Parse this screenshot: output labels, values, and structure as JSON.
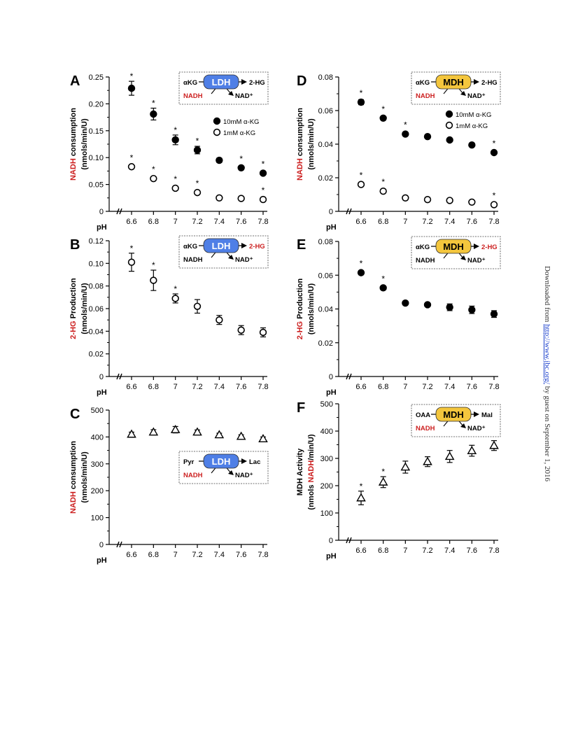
{
  "sidebar": {
    "prefix": "Downloaded from ",
    "link": "http://www.jbc.org/",
    "suffix": " by guest on September 1, 2016"
  },
  "colors": {
    "red": "#cc1f1f",
    "ldh": "#4f7fe6",
    "mdh": "#f4c63d",
    "black": "#000000"
  },
  "chart_data": [
    {
      "panel": "A",
      "type": "scatter",
      "ylabel_red": "NADH",
      "ylabel_rest": " consumption",
      "ylabel_units": "(nmols/min/U)",
      "xlabel": "pH",
      "x": [
        6.6,
        6.8,
        7,
        7.2,
        7.4,
        7.6,
        7.8
      ],
      "xticks": [
        "6.6",
        "6.8",
        "7",
        "7.2",
        "7.4",
        "7.6",
        "7.8"
      ],
      "ylim": [
        0,
        0.25
      ],
      "yticks": [
        "0",
        "0.05",
        "0.10",
        "0.15",
        "0.20",
        "0.25"
      ],
      "series": [
        {
          "name": "10mM α-KG",
          "marker": "filled-circle",
          "values": [
            0.229,
            0.181,
            0.133,
            0.114,
            0.095,
            0.081,
            0.071
          ],
          "errors": [
            0.013,
            0.011,
            0.009,
            0.007,
            0.004,
            0.003,
            0.003
          ],
          "stars": [
            true,
            true,
            true,
            true,
            false,
            true,
            true
          ]
        },
        {
          "name": "1mM α-KG",
          "marker": "open-circle",
          "values": [
            0.083,
            0.061,
            0.043,
            0.035,
            0.025,
            0.024,
            0.022
          ],
          "errors": [
            0.003,
            0.003,
            0.003,
            0.002,
            0.002,
            0.002,
            0.002
          ],
          "stars": [
            true,
            true,
            true,
            true,
            false,
            false,
            true
          ]
        }
      ],
      "legend": "right",
      "scheme": {
        "enzyme": "LDH",
        "color": "ldh",
        "sub": "αKG",
        "prod": "2-HG",
        "cof": "NADH",
        "cof2": "NAD⁺",
        "red": "cof"
      }
    },
    {
      "panel": "B",
      "type": "scatter",
      "ylabel_red": "2-HG",
      "ylabel_rest": " Production",
      "ylabel_units": "(nmols/min/U)",
      "xlabel": "pH",
      "x": [
        6.6,
        6.8,
        7,
        7.2,
        7.4,
        7.6,
        7.8
      ],
      "xticks": [
        "6.6",
        "6.8",
        "7",
        "7.2",
        "7.4",
        "7.6",
        "7.8"
      ],
      "ylim": [
        0,
        0.12
      ],
      "yticks": [
        "0",
        "0.02",
        "0.04",
        "0.06",
        "0.08",
        "0.10",
        "0.12"
      ],
      "series": [
        {
          "marker": "open-circle",
          "values": [
            0.101,
            0.085,
            0.069,
            0.062,
            0.05,
            0.041,
            0.039
          ],
          "errors": [
            0.008,
            0.009,
            0.004,
            0.006,
            0.004,
            0.004,
            0.004
          ],
          "stars": [
            true,
            true,
            true,
            false,
            false,
            false,
            false
          ]
        }
      ],
      "scheme": {
        "enzyme": "LDH",
        "color": "ldh",
        "sub": "αKG",
        "prod": "2-HG",
        "cof": "NADH",
        "cof2": "NAD⁺",
        "red": "prod"
      }
    },
    {
      "panel": "C",
      "type": "scatter",
      "ylabel_red": "NADH",
      "ylabel_rest": " consumption",
      "ylabel_units": "(nmols/min/U)",
      "xlabel": "pH",
      "x": [
        6.6,
        6.8,
        7,
        7.2,
        7.4,
        7.6,
        7.8
      ],
      "xticks": [
        "6.6",
        "6.8",
        "7",
        "7.2",
        "7.4",
        "7.6",
        "7.8"
      ],
      "ylim": [
        0,
        500
      ],
      "yticks": [
        "0",
        "100",
        "200",
        "300",
        "400",
        "500"
      ],
      "series": [
        {
          "marker": "open-triangle",
          "values": [
            410,
            418,
            427,
            418,
            408,
            402,
            393
          ],
          "errors": [
            8,
            9,
            12,
            8,
            6,
            6,
            7
          ],
          "stars": [
            false,
            false,
            false,
            false,
            false,
            false,
            false
          ]
        }
      ],
      "scheme": {
        "enzyme": "LDH",
        "color": "ldh",
        "sub": "Pyr",
        "prod": "Lac",
        "cof": "NADH",
        "cof2": "NAD⁺",
        "red": "cof"
      }
    },
    {
      "panel": "D",
      "type": "scatter",
      "ylabel_red": "NADH",
      "ylabel_rest": " consumption",
      "ylabel_units": "(nmols/min/U)",
      "xlabel": "pH",
      "x": [
        6.6,
        6.8,
        7,
        7.2,
        7.4,
        7.6,
        7.8
      ],
      "xticks": [
        "6.6",
        "6.8",
        "7",
        "7.2",
        "7.4",
        "7.6",
        "7.8"
      ],
      "ylim": [
        0,
        0.08
      ],
      "yticks": [
        "0",
        "0.02",
        "0.04",
        "0.06",
        "0.08"
      ],
      "series": [
        {
          "name": "10mM α-KG",
          "marker": "filled-circle",
          "values": [
            0.065,
            0.0555,
            0.046,
            0.0445,
            0.0425,
            0.0395,
            0.035
          ],
          "errors": [
            0.0015,
            0.001,
            0.001,
            0.0006,
            0.0006,
            0.0006,
            0.0008
          ],
          "stars": [
            true,
            true,
            true,
            false,
            false,
            false,
            true
          ]
        },
        {
          "name": "1mM α-KG",
          "marker": "open-circle",
          "values": [
            0.016,
            0.012,
            0.008,
            0.007,
            0.0065,
            0.0055,
            0.004
          ],
          "errors": [
            0.0008,
            0.0006,
            0.0005,
            0.0004,
            0.0004,
            0.0004,
            0.0004
          ],
          "stars": [
            true,
            true,
            false,
            false,
            false,
            false,
            true
          ]
        }
      ],
      "legend": "right",
      "scheme": {
        "enzyme": "MDH",
        "color": "mdh",
        "sub": "αKG",
        "prod": "2-HG",
        "cof": "NADH",
        "cof2": "NAD⁺",
        "red": "cof"
      }
    },
    {
      "panel": "E",
      "type": "scatter",
      "ylabel_red": "2-HG",
      "ylabel_rest": " Production",
      "ylabel_units": "(nmols/min/U)",
      "xlabel": "pH",
      "x": [
        6.6,
        6.8,
        7,
        7.2,
        7.4,
        7.6,
        7.8
      ],
      "xticks": [
        "6.6",
        "6.8",
        "7",
        "7.2",
        "7.4",
        "7.6",
        "7.8"
      ],
      "ylim": [
        0,
        0.08
      ],
      "yticks": [
        "0",
        "0.02",
        "0.04",
        "0.06",
        "0.08"
      ],
      "series": [
        {
          "marker": "filled-circle",
          "values": [
            0.0615,
            0.0525,
            0.0435,
            0.0425,
            0.041,
            0.0395,
            0.037
          ],
          "errors": [
            0.0012,
            0.0008,
            0.0006,
            0.0008,
            0.002,
            0.0022,
            0.002
          ],
          "stars": [
            true,
            true,
            false,
            false,
            false,
            false,
            false
          ]
        }
      ],
      "scheme": {
        "enzyme": "MDH",
        "color": "mdh",
        "sub": "αKG",
        "prod": "2-HG",
        "cof": "NADH",
        "cof2": "NAD⁺",
        "red": "prod"
      }
    },
    {
      "panel": "F",
      "type": "scatter",
      "ylabel_top": "MDH Activity",
      "ylabel_pre": "(nmols ",
      "ylabel_red": "NADH",
      "ylabel_post": "/min/U)",
      "xlabel": "pH",
      "x": [
        6.6,
        6.8,
        7,
        7.2,
        7.4,
        7.6,
        7.8
      ],
      "xticks": [
        "6.6",
        "6.8",
        "7",
        "7.2",
        "7.4",
        "7.6",
        "7.8"
      ],
      "ylim": [
        0,
        500
      ],
      "yticks": [
        "0",
        "100",
        "200",
        "300",
        "400",
        "500"
      ],
      "series": [
        {
          "marker": "open-triangle",
          "values": [
            155,
            213,
            268,
            288,
            307,
            328,
            347
          ],
          "errors": [
            25,
            20,
            22,
            18,
            22,
            20,
            18
          ],
          "stars": [
            true,
            true,
            false,
            false,
            false,
            false,
            false
          ]
        }
      ],
      "scheme": {
        "enzyme": "MDH",
        "color": "mdh",
        "sub": "OAA",
        "prod": "Mal",
        "cof": "NADH",
        "cof2": "NAD⁺",
        "red": "cof"
      }
    }
  ]
}
